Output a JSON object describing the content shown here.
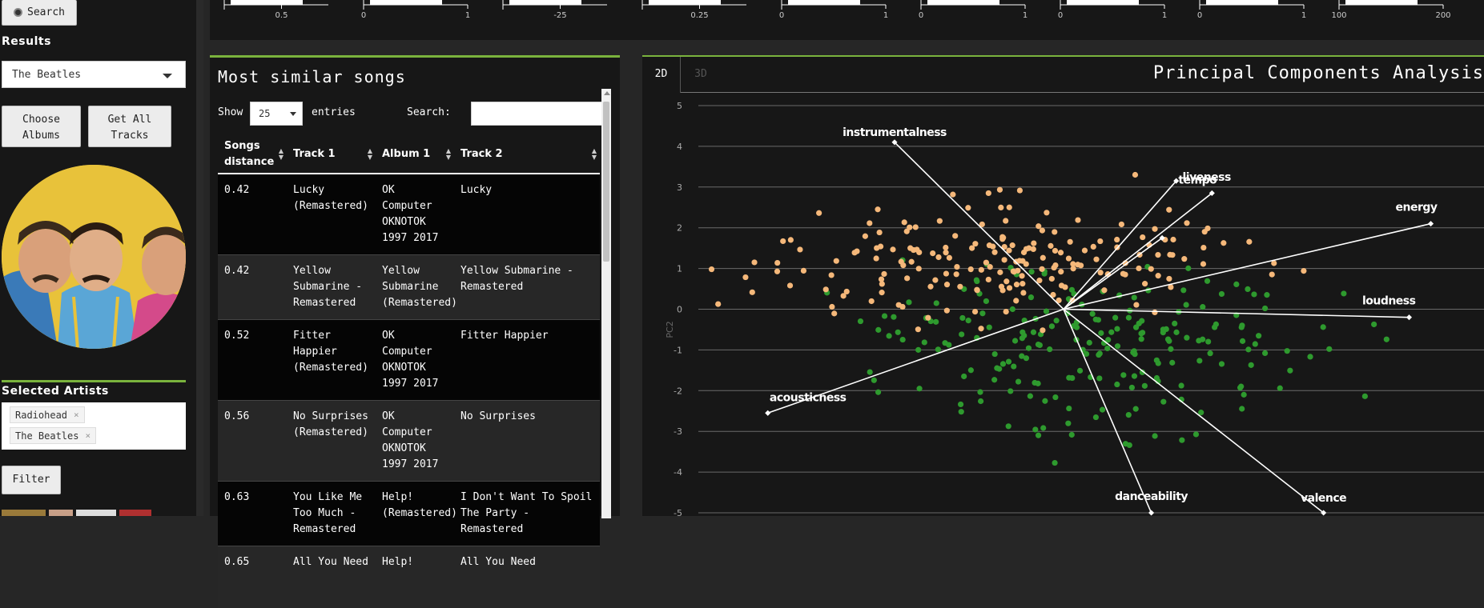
{
  "sidebar": {
    "search_label": "Search",
    "results_heading": "Results",
    "results_selected": "The Beatles",
    "choose_albums_label": "Choose Albums",
    "get_all_tracks_label": "Get All Tracks",
    "selected_artists_heading": "Selected Artists",
    "selected_artists": [
      "Radiohead",
      "The Beatles"
    ],
    "remove_glyph": "×",
    "filter_label": "Filter",
    "accent_color": "#7ab33d"
  },
  "histograms": {
    "tick_labels": [
      [
        "0.5"
      ],
      [
        "0",
        "1"
      ],
      [
        "-25"
      ],
      [
        "0.25"
      ],
      [
        "0",
        "1"
      ],
      [
        "0",
        "1"
      ],
      [
        "0",
        "1"
      ],
      [
        "0",
        "1"
      ],
      [
        "100",
        "200"
      ]
    ]
  },
  "table_panel": {
    "title": "Most similar songs",
    "show_label": "Show",
    "entries_value": "25",
    "entries_label": "entries",
    "search_label": "Search:",
    "search_value": "",
    "columns": [
      "Songs distance",
      "Track 1",
      "Album 1",
      "Track 2"
    ],
    "rows": [
      [
        "0.42",
        "Lucky (Remastered)",
        "OK Computer OKNOTOK 1997 2017",
        "Lucky"
      ],
      [
        "0.42",
        "Yellow Submarine - Remastered",
        "Yellow Submarine (Remastered)",
        "Yellow Submarine - Remastered"
      ],
      [
        "0.52",
        "Fitter Happier (Remastered)",
        "OK Computer OKNOTOK 1997 2017",
        "Fitter Happier"
      ],
      [
        "0.56",
        "No Surprises (Remastered)",
        "OK Computer OKNOTOK 1997 2017",
        "No Surprises"
      ],
      [
        "0.63",
        "You Like Me Too Much - Remastered",
        "Help! (Remastered)",
        "I Don't Want To Spoil The Party - Remastered"
      ],
      [
        "0.65",
        "All You Need",
        "Help!",
        "All You Need"
      ]
    ]
  },
  "pca_panel": {
    "tabs": [
      "2D",
      "3D"
    ],
    "active_tab": "2D",
    "title": "Principal Components Analysis",
    "colors": {
      "radiohead": "#2e9a2e",
      "beatles": "#f5b87a",
      "vector": "#ffffff"
    }
  },
  "chart_data": {
    "type": "scatter",
    "ylabel": "PC2",
    "xlabel": "",
    "ylim": [
      -5,
      5
    ],
    "xlim": [
      -5,
      3
    ],
    "yticks": [
      "5",
      "4",
      "3",
      "2",
      "1",
      "0",
      "-1",
      "-2",
      "-3",
      "-4",
      "-5"
    ],
    "grid": true,
    "loadings": [
      {
        "name": "instrumentalness",
        "x": -1.56,
        "y": 4.1
      },
      {
        "name": "liveness",
        "x": 1.04,
        "y": 3.15
      },
      {
        "name": "tempo",
        "x": 1.37,
        "y": 2.85
      },
      {
        "name": "energy",
        "x": 3.39,
        "y": 2.1
      },
      {
        "name": "loudness",
        "x": 3.19,
        "y": -0.2
      },
      {
        "name": "acousticness",
        "x": -2.73,
        "y": -2.55
      },
      {
        "name": "danceability",
        "x": 0.81,
        "y": -5.0
      },
      {
        "name": "valence",
        "x": 2.4,
        "y": -5.0
      },
      {
        "name": "",
        "x": 0.91,
        "y": 1.75
      }
    ]
  }
}
